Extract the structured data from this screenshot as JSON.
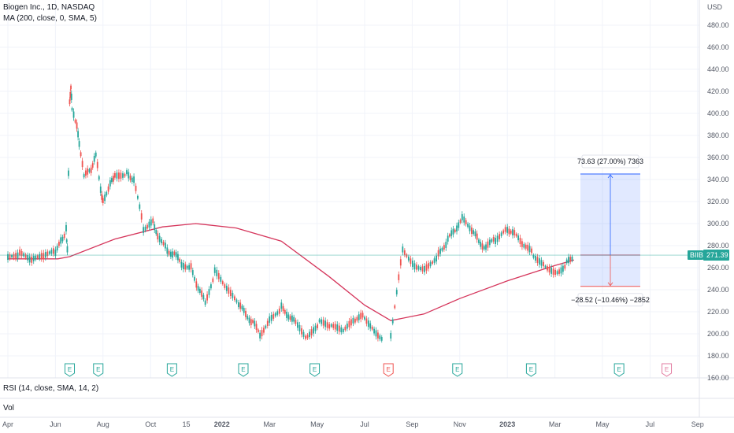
{
  "header": {
    "title": "Biogen Inc., 1D, NASDAQ",
    "ma_label": "MA (200, close, 0, SMA, 5)"
  },
  "panes": {
    "rsi_label": "RSI (14, close, SMA, 14, 2)",
    "vol_label": "Vol"
  },
  "price_axis": {
    "currency": "USD",
    "ticks": [
      "480.00",
      "460.00",
      "440.00",
      "420.00",
      "400.00",
      "380.00",
      "360.00",
      "340.00",
      "320.00",
      "300.00",
      "280.00",
      "260.00",
      "240.00",
      "220.00",
      "200.00",
      "180.00",
      "160.00"
    ]
  },
  "last_price": {
    "symbol": "BIIB",
    "value": "271.39",
    "color": "#26a69a"
  },
  "measure": {
    "upper_label": "73.63 (27.00%) 7363",
    "lower_label": "−28.52 (−10.46%) −2852",
    "upper_price": 345.0,
    "mid_price": 271.4,
    "lower_price": 243.0
  },
  "earnings_markers": [
    {
      "label": "E",
      "month": 2.6,
      "type": "positive"
    },
    {
      "label": "E",
      "month": 3.8,
      "type": "positive"
    },
    {
      "label": "E",
      "month": 6.9,
      "type": "positive"
    },
    {
      "label": "E",
      "month": 9.9,
      "type": "positive"
    },
    {
      "label": "E",
      "month": 12.9,
      "type": "positive"
    },
    {
      "label": "E",
      "month": 16.0,
      "type": "negative"
    },
    {
      "label": "E",
      "month": 18.9,
      "type": "positive"
    },
    {
      "label": "E",
      "month": 22.0,
      "type": "positive"
    },
    {
      "label": "E",
      "month": 25.7,
      "type": "positive"
    },
    {
      "label": "E",
      "month": 27.7,
      "type": "future"
    }
  ],
  "time_axis": {
    "labels": [
      "Apr",
      "Jun",
      "Aug",
      "Oct",
      "15",
      "2022",
      "Mar",
      "May",
      "Jul",
      "Sep",
      "Nov",
      "2023",
      "Mar",
      "May",
      "Jul",
      "Sep"
    ],
    "bold": [
      "2022",
      "2023"
    ]
  },
  "chart_data": {
    "type": "line",
    "title": "Biogen Inc., 1D, NASDAQ",
    "xlabel": "",
    "ylabel": "",
    "ylim": [
      160,
      490
    ],
    "x_axis_range_months": [
      "2021-03",
      "2023-10"
    ],
    "series": [
      {
        "name": "Biogen Inc.",
        "color": "#26a69a",
        "x": [
          0,
          0.5,
          1,
          1.5,
          2,
          2.3,
          2.45,
          2.5,
          2.6,
          2.65,
          2.7,
          2.9,
          3.0,
          3.2,
          3.5,
          3.7,
          3.9,
          4.0,
          4.3,
          4.5,
          5.0,
          5.3,
          5.7,
          6.1,
          6.3,
          6.7,
          7.0,
          7.3,
          7.7,
          8.0,
          8.3,
          8.7,
          9.2,
          9.7,
          10.3,
          10.6,
          11.0,
          11.5,
          12.1,
          12.6,
          13.1,
          13.6,
          14.1,
          14.6,
          15.0,
          15.4,
          15.8,
          16.1,
          16.6,
          17.1,
          17.6,
          18.1,
          18.5,
          18.8,
          19.1,
          19.5,
          19.8,
          20.1,
          20.5,
          21.0,
          21.3,
          21.7,
          22.1,
          22.6,
          23.1,
          23.5,
          23.8
        ],
        "y": [
          268,
          272,
          266,
          270,
          274,
          286,
          294,
          278,
          410,
          425,
          402,
          390,
          374,
          342,
          350,
          362,
          330,
          322,
          335,
          344,
          346,
          340,
          296,
          302,
          290,
          276,
          272,
          264,
          260,
          242,
          228,
          256,
          240,
          226,
          210,
          200,
          212,
          224,
          210,
          196,
          210,
          206,
          202,
          212,
          216,
          202,
          196,
          200,
          278,
          262,
          260,
          272,
          285,
          295,
          304,
          294,
          284,
          278,
          286,
          296,
          290,
          280,
          272,
          262,
          256,
          264,
          271.4
        ],
        "gap_after_month": 15.8
      },
      {
        "name": "MA (200, close, 0, SMA, 5)",
        "color": "#d5355b",
        "x": [
          0,
          2.1,
          2.6,
          4.5,
          6.5,
          7.9,
          9.6,
          11.5,
          13.5,
          15.0,
          16.1,
          17.5,
          19.0,
          21.0,
          23.0,
          23.8
        ],
        "y": [
          268,
          268,
          270,
          286,
          297,
          300,
          296,
          284,
          252,
          226,
          212,
          218,
          232,
          248,
          262,
          267
        ]
      }
    ]
  }
}
